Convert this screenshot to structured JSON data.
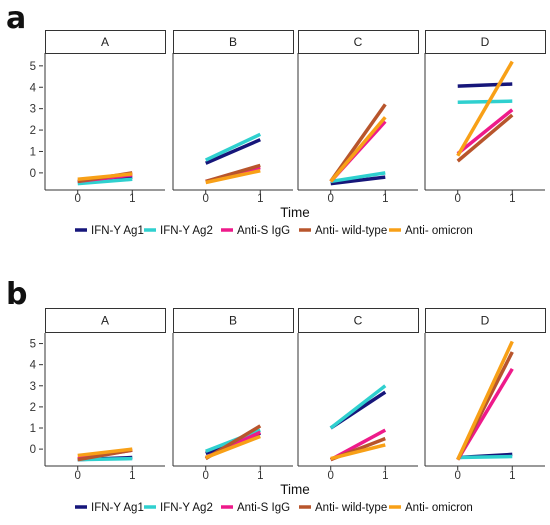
{
  "colors": {
    "IFN-Y Ag1": "#16167a",
    "IFN-Y Ag2": "#2fd0cf",
    "Anti-S IgG": "#ee1a8a",
    "Anti- wild-type": "#b8552c",
    "Anti- omicron": "#f8a017"
  },
  "legend": [
    "IFN-Y Ag1",
    "IFN-Y Ag2",
    "Anti-S IgG",
    "Anti- wild-type",
    "Anti- omicron"
  ],
  "chart_data": [
    {
      "type": "line",
      "panel_label": "a",
      "facets": [
        "A",
        "B",
        "C",
        "D"
      ],
      "x": [
        0,
        1
      ],
      "xlabel": "Time",
      "ylabel": "",
      "yticks": [
        0,
        1,
        2,
        3,
        4,
        5
      ],
      "ylim": [
        -0.8,
        5.6
      ],
      "grid": false,
      "legend_position": "bottom",
      "facet_series": {
        "A": [
          {
            "name": "IFN-Y Ag1",
            "values": [
              -0.4,
              -0.2
            ]
          },
          {
            "name": "IFN-Y Ag2",
            "values": [
              -0.5,
              -0.3
            ]
          },
          {
            "name": "Anti-S IgG",
            "values": [
              -0.4,
              -0.1
            ]
          },
          {
            "name": "Anti- wild-type",
            "values": [
              -0.4,
              0.0
            ]
          },
          {
            "name": "Anti- omicron",
            "values": [
              -0.3,
              -0.05
            ]
          }
        ],
        "B": [
          {
            "name": "IFN-Y Ag1",
            "values": [
              0.45,
              1.55
            ]
          },
          {
            "name": "IFN-Y Ag2",
            "values": [
              0.6,
              1.8
            ]
          },
          {
            "name": "Anti-S IgG",
            "values": [
              -0.4,
              0.25
            ]
          },
          {
            "name": "Anti- wild-type",
            "values": [
              -0.4,
              0.35
            ]
          },
          {
            "name": "Anti- omicron",
            "values": [
              -0.45,
              0.1
            ]
          }
        ],
        "C": [
          {
            "name": "IFN-Y Ag1",
            "values": [
              -0.5,
              -0.2
            ]
          },
          {
            "name": "IFN-Y Ag2",
            "values": [
              -0.4,
              0.0
            ]
          },
          {
            "name": "Anti-S IgG",
            "values": [
              -0.4,
              2.4
            ]
          },
          {
            "name": "Anti- wild-type",
            "values": [
              -0.4,
              3.2
            ]
          },
          {
            "name": "Anti- omicron",
            "values": [
              -0.4,
              2.6
            ]
          }
        ],
        "D": [
          {
            "name": "IFN-Y Ag1",
            "values": [
              4.05,
              4.15
            ]
          },
          {
            "name": "IFN-Y Ag2",
            "values": [
              3.3,
              3.35
            ]
          },
          {
            "name": "Anti-S IgG",
            "values": [
              0.9,
              2.95
            ]
          },
          {
            "name": "Anti- wild-type",
            "values": [
              0.55,
              2.7
            ]
          },
          {
            "name": "Anti- omicron",
            "values": [
              0.8,
              5.2
            ]
          }
        ]
      }
    },
    {
      "type": "line",
      "panel_label": "b",
      "facets": [
        "A",
        "B",
        "C",
        "D"
      ],
      "x": [
        0,
        1
      ],
      "xlabel": "Time",
      "ylabel": "",
      "yticks": [
        0,
        1,
        2,
        3,
        4,
        5
      ],
      "ylim": [
        -0.8,
        5.5
      ],
      "grid": false,
      "legend_position": "bottom",
      "facet_series": {
        "A": [
          {
            "name": "IFN-Y Ag1",
            "values": [
              -0.5,
              -0.4
            ]
          },
          {
            "name": "IFN-Y Ag2",
            "values": [
              -0.5,
              -0.45
            ]
          },
          {
            "name": "Anti-S IgG",
            "values": [
              -0.45,
              -0.05
            ]
          },
          {
            "name": "Anti- wild-type",
            "values": [
              -0.5,
              -0.05
            ]
          },
          {
            "name": "Anti- omicron",
            "values": [
              -0.3,
              0.0
            ]
          }
        ],
        "B": [
          {
            "name": "IFN-Y Ag1",
            "values": [
              -0.2,
              0.75
            ]
          },
          {
            "name": "IFN-Y Ag2",
            "values": [
              -0.1,
              0.9
            ]
          },
          {
            "name": "Anti-S IgG",
            "values": [
              -0.4,
              0.8
            ]
          },
          {
            "name": "Anti- wild-type",
            "values": [
              -0.45,
              1.1
            ]
          },
          {
            "name": "Anti- omicron",
            "values": [
              -0.4,
              0.6
            ]
          }
        ],
        "C": [
          {
            "name": "IFN-Y Ag1",
            "values": [
              1.0,
              2.7
            ]
          },
          {
            "name": "IFN-Y Ag2",
            "values": [
              1.0,
              3.0
            ]
          },
          {
            "name": "Anti-S IgG",
            "values": [
              -0.5,
              0.9
            ]
          },
          {
            "name": "Anti- wild-type",
            "values": [
              -0.5,
              0.5
            ]
          },
          {
            "name": "Anti- omicron",
            "values": [
              -0.45,
              0.2
            ]
          }
        ],
        "D": [
          {
            "name": "IFN-Y Ag1",
            "values": [
              -0.4,
              -0.25
            ]
          },
          {
            "name": "IFN-Y Ag2",
            "values": [
              -0.4,
              -0.35
            ]
          },
          {
            "name": "Anti-S IgG",
            "values": [
              -0.5,
              3.8
            ]
          },
          {
            "name": "Anti- wild-type",
            "values": [
              -0.5,
              4.6
            ]
          },
          {
            "name": "Anti- omicron",
            "values": [
              -0.5,
              5.1
            ]
          }
        ]
      }
    }
  ]
}
